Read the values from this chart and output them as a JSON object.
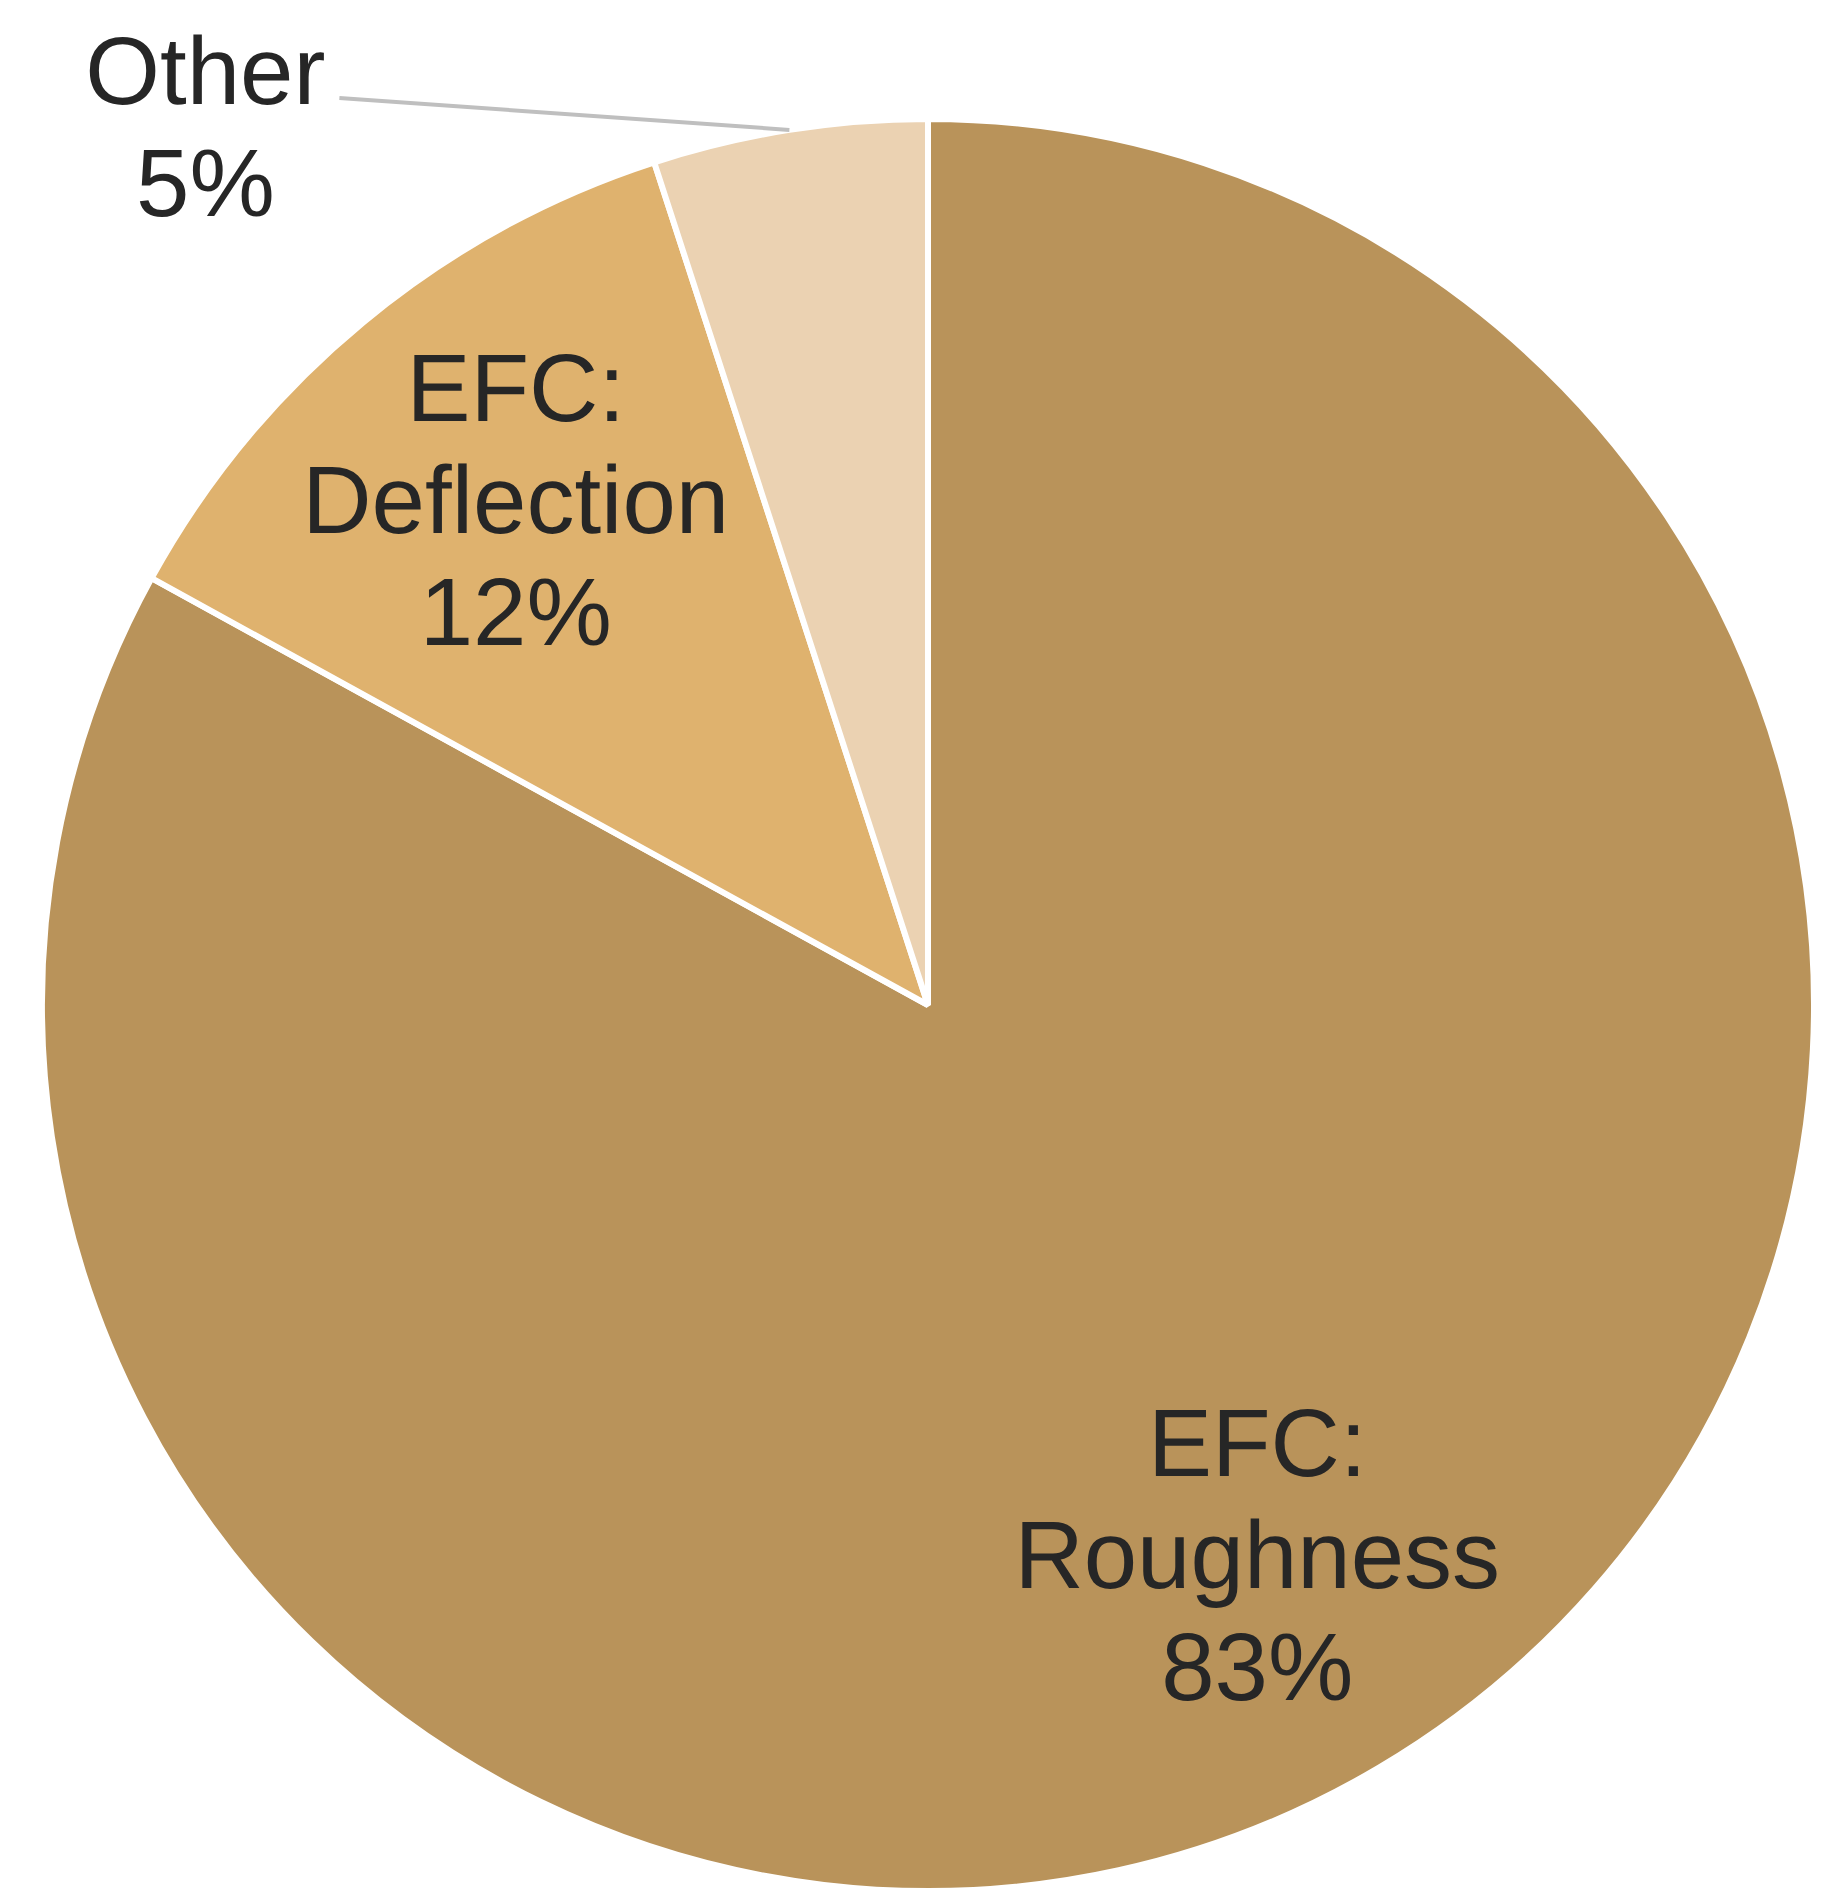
{
  "chart_data": {
    "type": "pie",
    "categories": [
      "EFC: Roughness",
      "EFC: Deflection",
      "Other"
    ],
    "values": [
      83,
      12,
      5
    ],
    "colors": [
      "#b9935a",
      "#dfb26e",
      "#ebd2b2"
    ],
    "value_labels": [
      "83%",
      "12%",
      "5%"
    ],
    "legend": false
  }
}
